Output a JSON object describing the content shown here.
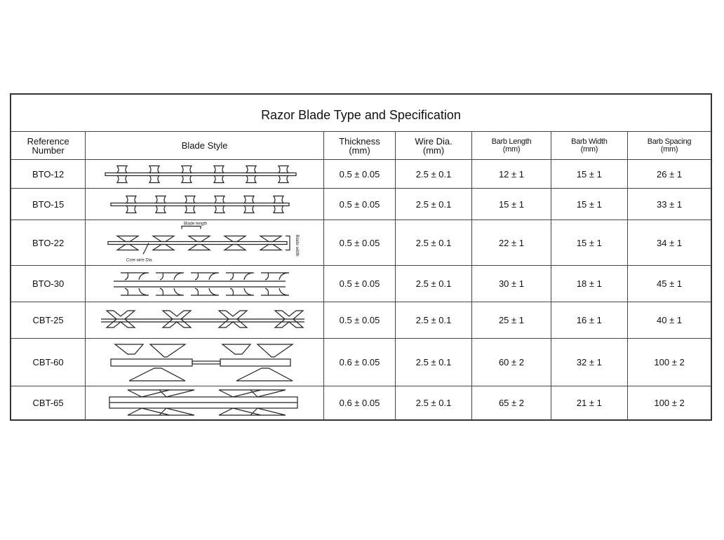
{
  "title": "Razor Blade Type and Specification",
  "headers": {
    "reference": [
      "Reference",
      "Number"
    ],
    "blade_style": "Blade Style",
    "thickness": [
      "Thickness",
      "(mm)"
    ],
    "wire_dia": [
      "Wire Dia.",
      "(mm)"
    ],
    "barb_length": [
      "Barb Length",
      "(mm)"
    ],
    "barb_width": [
      "Barb Width",
      "(mm)"
    ],
    "barb_spacing": [
      "Barb Spacing",
      "(mm)"
    ]
  },
  "diagram_labels": {
    "blade_length": "Blade length",
    "blade_width": "Blade width",
    "core_wire": "Core wire Dia."
  },
  "rows": [
    {
      "ref": "BTO-12",
      "style": "bto12",
      "thickness": "0.5 ± 0.05",
      "wire": "2.5 ± 0.1",
      "length": "12 ± 1",
      "width": "15 ± 1",
      "spacing": "26 ± 1"
    },
    {
      "ref": "BTO-15",
      "style": "bto15",
      "thickness": "0.5 ± 0.05",
      "wire": "2.5 ± 0.1",
      "length": "15 ± 1",
      "width": "15 ± 1",
      "spacing": "33 ± 1"
    },
    {
      "ref": "BTO-22",
      "style": "bto22",
      "thickness": "0.5 ± 0.05",
      "wire": "2.5 ± 0.1",
      "length": "22 ± 1",
      "width": "15 ± 1",
      "spacing": "34 ± 1"
    },
    {
      "ref": "BTO-30",
      "style": "bto30",
      "thickness": "0.5 ± 0.05",
      "wire": "2.5 ± 0.1",
      "length": "30 ± 1",
      "width": "18 ± 1",
      "spacing": "45 ± 1"
    },
    {
      "ref": "CBT-25",
      "style": "cbt25",
      "thickness": "0.5 ± 0.05",
      "wire": "2.5 ± 0.1",
      "length": "25 ± 1",
      "width": "16 ± 1",
      "spacing": "40 ± 1"
    },
    {
      "ref": "CBT-60",
      "style": "cbt60",
      "thickness": "0.6 ± 0.05",
      "wire": "2.5 ± 0.1",
      "length": "60 ± 2",
      "width": "32 ± 1",
      "spacing": "100 ± 2"
    },
    {
      "ref": "CBT-65",
      "style": "cbt65",
      "thickness": "0.6 ± 0.05",
      "wire": "2.5 ± 0.1",
      "length": "65 ± 2",
      "width": "21 ± 1",
      "spacing": "100 ± 2"
    }
  ]
}
